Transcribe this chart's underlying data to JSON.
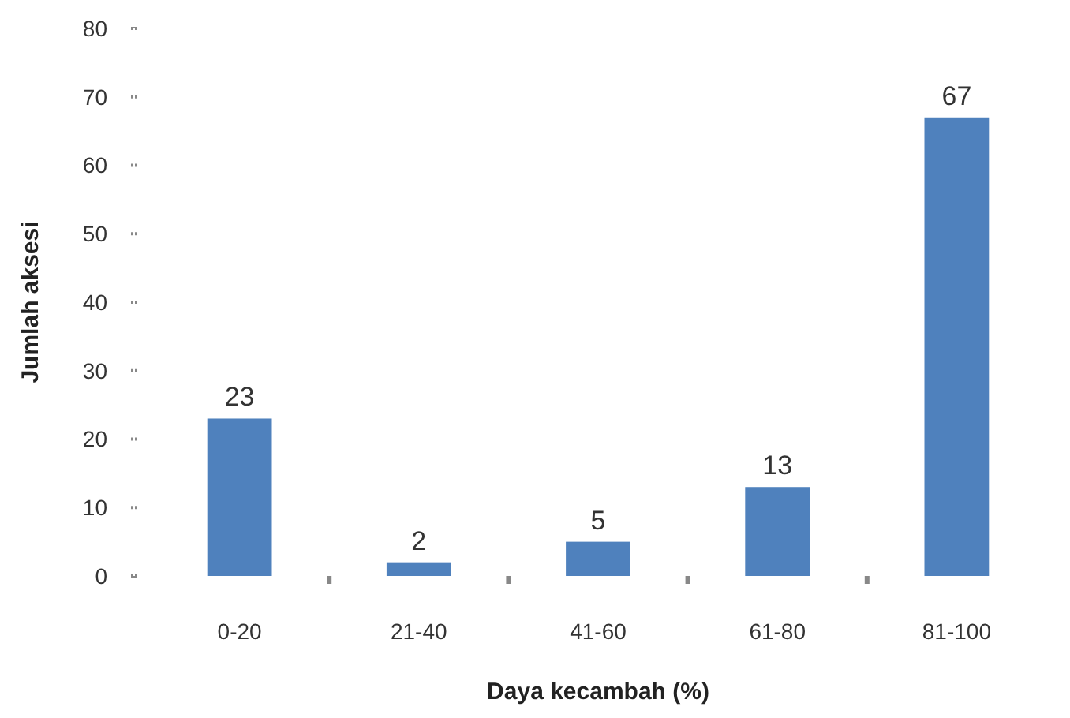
{
  "chart_data": {
    "type": "bar",
    "xlabel": "Daya kecambah (%)",
    "ylabel": "Jumlah aksesi",
    "categories": [
      "0-20",
      "21-40",
      "41-60",
      "61-80",
      "81-100"
    ],
    "values": [
      23,
      2,
      5,
      13,
      67
    ],
    "color": "#4f81bd",
    "data_labels": true,
    "ylim": [
      0,
      80
    ],
    "yticks": [
      0,
      10,
      20,
      30,
      40,
      50,
      60,
      70,
      80
    ],
    "grid": false
  }
}
